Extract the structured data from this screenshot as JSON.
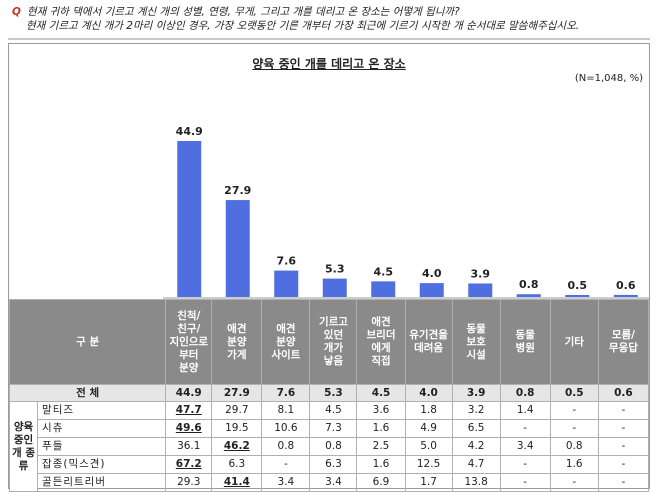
{
  "question": {
    "marker": "Q",
    "line1": "현재 귀하 댁에서 기르고 계신 개의 성별, 연령, 무게, 그리고 개를 데리고 온 장소는 어떻게 됩니까?",
    "line2": "현재 기르고 계신 개가 2마리 이상인 경우, 가장 오랫동안 기른 개부터 가장 최근에 기르기 시작한 개 순서대로 말씀해주십시오."
  },
  "chart_data": {
    "type": "bar",
    "title": "양육 중인 개를 데리고 온 장소",
    "unit_note": "(N=1,048,  %)",
    "categories": [
      "친척/친구/지인으로부터 분양",
      "애견분양가게",
      "애견분양사이트",
      "기르고있던개가낳음",
      "애견브리더에게직접",
      "유기견을데려옴",
      "동물보호시설",
      "동물병원",
      "기타",
      "모름/무응답"
    ],
    "values": [
      44.9,
      27.9,
      7.6,
      5.3,
      4.5,
      4.0,
      3.9,
      0.8,
      0.5,
      0.6
    ],
    "value_labels": [
      "44.9",
      "27.9",
      "7.6",
      "5.3",
      "4.5",
      "4.0",
      "3.9",
      "0.8",
      "0.5",
      "0.6"
    ],
    "bar_color": "#4f6fe0"
  },
  "table": {
    "corner_label": "구 분",
    "headers": [
      [
        "친척/",
        "친구/",
        "지인으로",
        "부터",
        "분양"
      ],
      [
        "애견",
        "분양",
        "가게"
      ],
      [
        "애견",
        "분양",
        "사이트"
      ],
      [
        "기르고",
        "있던",
        "개가",
        "낳음"
      ],
      [
        "애견",
        "브리더",
        "에게",
        "직접"
      ],
      [
        "유기견을",
        "데려옴"
      ],
      [
        "동물",
        "보호",
        "시설"
      ],
      [
        "동물",
        "병원"
      ],
      [
        "기타"
      ],
      [
        "모름/",
        "무응답"
      ]
    ],
    "total": {
      "label": "전 체",
      "values": [
        "44.9",
        "27.9",
        "7.6",
        "5.3",
        "4.5",
        "4.0",
        "3.9",
        "0.8",
        "0.5",
        "0.6"
      ]
    },
    "group_label": [
      "양육",
      "중인",
      "개 종류"
    ],
    "rows": [
      {
        "label": "말티즈",
        "values": [
          "47.7",
          "29.7",
          "8.1",
          "4.5",
          "3.6",
          "1.8",
          "3.2",
          "1.4",
          "-",
          "-"
        ],
        "highlight": [
          0
        ]
      },
      {
        "label": "시츄",
        "values": [
          "49.6",
          "19.5",
          "10.6",
          "7.3",
          "1.6",
          "4.9",
          "6.5",
          "-",
          "-",
          "-"
        ],
        "highlight": [
          0
        ]
      },
      {
        "label": "푸들",
        "values": [
          "36.1",
          "46.2",
          "0.8",
          "0.8",
          "2.5",
          "5.0",
          "4.2",
          "3.4",
          "0.8",
          "-"
        ],
        "highlight": [
          1
        ]
      },
      {
        "label": "잡종(믹스견)",
        "values": [
          "67.2",
          "6.3",
          "-",
          "6.3",
          "1.6",
          "12.5",
          "4.7",
          "-",
          "1.6",
          "-"
        ],
        "highlight": [
          0
        ]
      },
      {
        "label": "골든리트리버",
        "values": [
          "29.3",
          "41.4",
          "3.4",
          "3.4",
          "6.9",
          "1.7",
          "13.8",
          "-",
          "-",
          "-"
        ],
        "highlight": [
          1
        ]
      }
    ]
  }
}
